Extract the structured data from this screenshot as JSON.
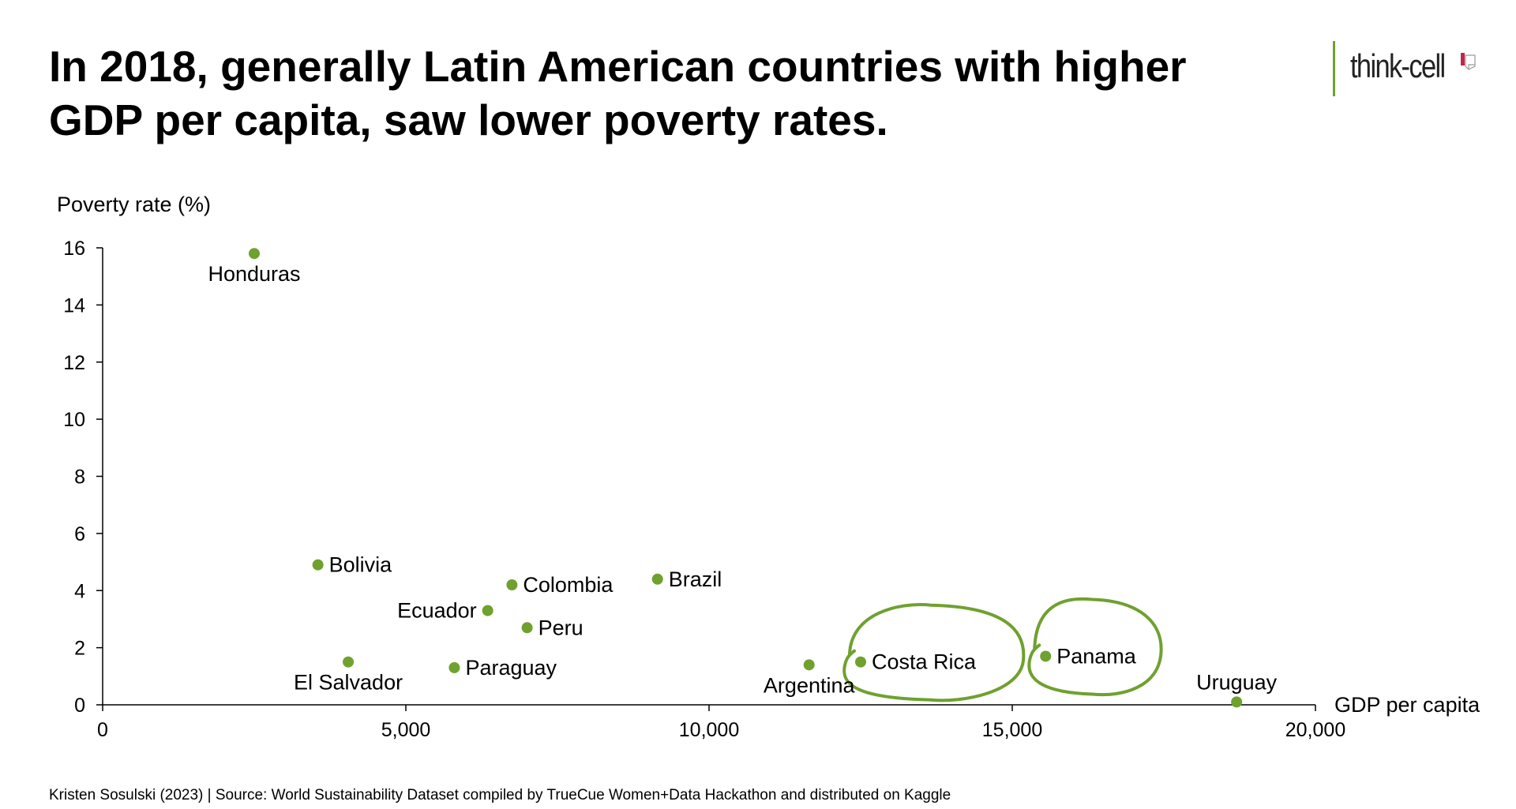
{
  "title_lines": [
    "In 2018, generally Latin American countries with higher",
    "GDP per capita, saw lower poverty rates."
  ],
  "logo": {
    "text": "think-cell",
    "accent_color": "#6fa12f",
    "mark_color": "#c0284a"
  },
  "footer": "Kristen Sosulski (2023) | Source: World Sustainability Dataset compiled by TrueCue Women+Data Hackathon and distributed on Kaggle",
  "colors": {
    "point": "#6fa12f",
    "highlight": "#6fa12f",
    "axis": "#000000"
  },
  "chart_data": {
    "type": "scatter",
    "title": "In 2018, generally Latin American countries with higher GDP per capita, saw lower poverty rates.",
    "xlabel": "GDP per capita",
    "ylabel": "Poverty rate (%)",
    "xlim": [
      0,
      20000
    ],
    "ylim": [
      0,
      16
    ],
    "x_ticks": [
      0,
      5000,
      10000,
      15000,
      20000
    ],
    "x_tick_labels": [
      "0",
      "5,000",
      "10,000",
      "15,000",
      "20,000"
    ],
    "y_ticks": [
      0,
      2,
      4,
      6,
      8,
      10,
      12,
      14,
      16
    ],
    "y_tick_labels": [
      "0",
      "2",
      "4",
      "6",
      "8",
      "10",
      "12",
      "14",
      "16"
    ],
    "grid": false,
    "points": [
      {
        "label": "Honduras",
        "x": 2500,
        "y": 15.8,
        "label_pos": "below"
      },
      {
        "label": "Bolivia",
        "x": 3550,
        "y": 4.9,
        "label_pos": "right"
      },
      {
        "label": "El Salvador",
        "x": 4050,
        "y": 1.5,
        "label_pos": "below"
      },
      {
        "label": "Paraguay",
        "x": 5800,
        "y": 1.3,
        "label_pos": "right"
      },
      {
        "label": "Ecuador",
        "x": 6350,
        "y": 3.3,
        "label_pos": "left"
      },
      {
        "label": "Colombia",
        "x": 6750,
        "y": 4.2,
        "label_pos": "right"
      },
      {
        "label": "Peru",
        "x": 7000,
        "y": 2.7,
        "label_pos": "right"
      },
      {
        "label": "Brazil",
        "x": 9150,
        "y": 4.4,
        "label_pos": "right"
      },
      {
        "label": "Argentina",
        "x": 11650,
        "y": 1.4,
        "label_pos": "below"
      },
      {
        "label": "Costa Rica",
        "x": 12500,
        "y": 1.5,
        "label_pos": "right"
      },
      {
        "label": "Panama",
        "x": 15550,
        "y": 1.7,
        "label_pos": "right"
      },
      {
        "label": "Uruguay",
        "x": 18700,
        "y": 0.1,
        "label_pos": "above"
      }
    ],
    "highlighted": [
      "Costa Rica",
      "Panama"
    ]
  }
}
